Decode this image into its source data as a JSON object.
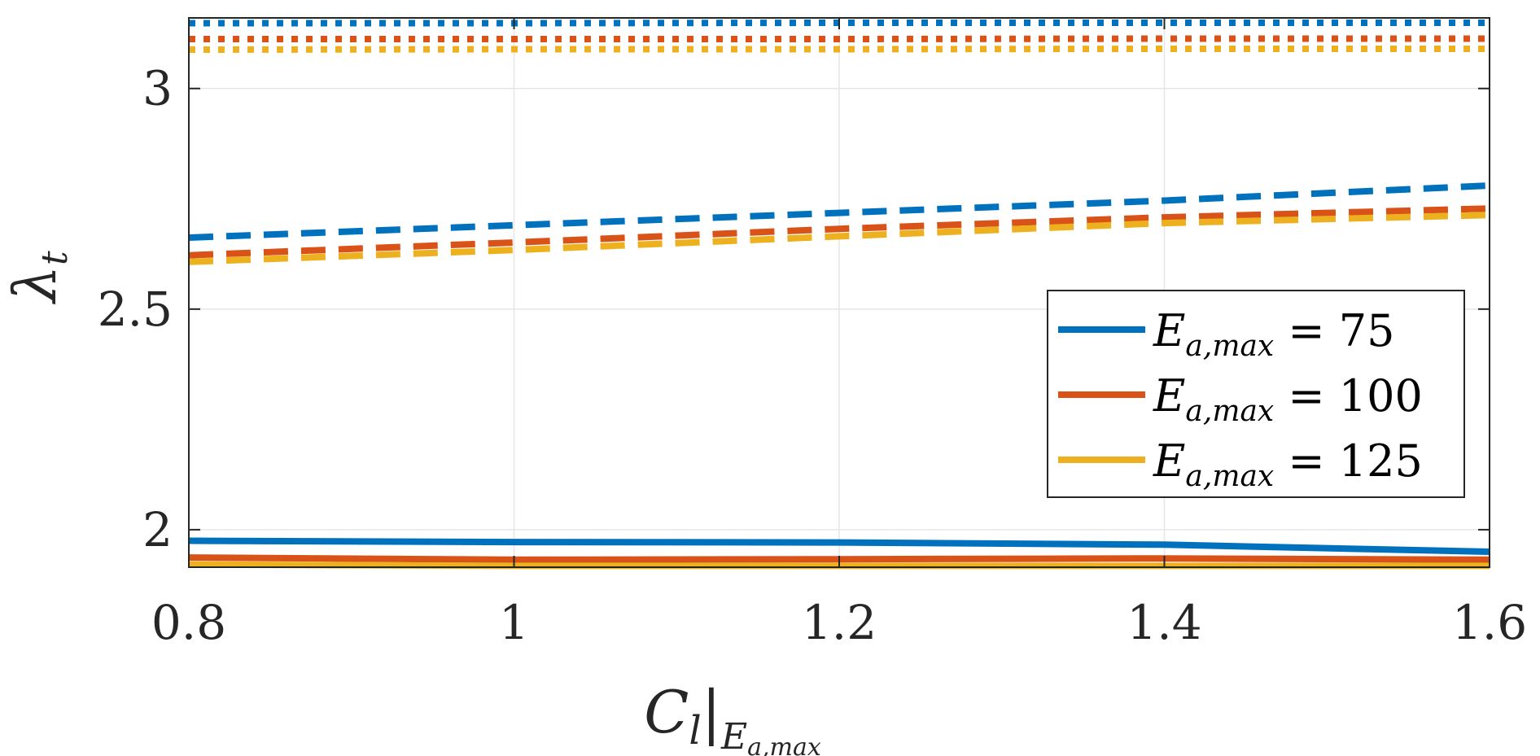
{
  "chart_data": {
    "type": "line",
    "title": "",
    "xlabel": {
      "main": "C",
      "sub1": "l",
      "bar": "|",
      "sub2": "E",
      "sub2sub": "a,max"
    },
    "ylabel": {
      "main": "λ",
      "sub": "t"
    },
    "xlim": [
      0.8,
      1.6
    ],
    "ylim": [
      1.915,
      3.16
    ],
    "xticks": [
      0.8,
      1.0,
      1.2,
      1.4,
      1.6
    ],
    "xtick_labels": [
      "0.8",
      "1",
      "1.2",
      "1.4",
      "1.6"
    ],
    "yticks": [
      2.0,
      2.5,
      3.0
    ],
    "ytick_labels": [
      "2",
      "2.5",
      "3"
    ],
    "grid": true,
    "legend_position": "center-right",
    "legend": [
      {
        "label_main": "E",
        "label_sub": "a,max",
        "label_value": " = 75",
        "color": "#0072BD"
      },
      {
        "label_main": "E",
        "label_sub": "a,max",
        "label_value": " = 100",
        "color": "#D95319"
      },
      {
        "label_main": "E",
        "label_sub": "a,max",
        "label_value": " = 125",
        "color": "#EDB120"
      }
    ],
    "series": [
      {
        "style": "solid",
        "color": "#0072BD",
        "x": [
          0.8,
          1.0,
          1.2,
          1.4,
          1.6
        ],
        "y": [
          1.975,
          1.972,
          1.971,
          1.966,
          1.95
        ]
      },
      {
        "style": "solid",
        "color": "#D95319",
        "x": [
          0.8,
          1.0,
          1.2,
          1.4,
          1.6
        ],
        "y": [
          1.937,
          1.932,
          1.933,
          1.935,
          1.932
        ]
      },
      {
        "style": "solid",
        "color": "#EDB120",
        "x": [
          0.8,
          1.0,
          1.2,
          1.4,
          1.6
        ],
        "y": [
          1.921,
          1.918,
          1.918,
          1.918,
          1.918
        ]
      },
      {
        "style": "dashed",
        "color": "#0072BD",
        "x": [
          0.8,
          1.0,
          1.2,
          1.4,
          1.6
        ],
        "y": [
          2.662,
          2.69,
          2.718,
          2.746,
          2.78
        ]
      },
      {
        "style": "dashed",
        "color": "#D95319",
        "x": [
          0.8,
          1.0,
          1.2,
          1.4,
          1.6
        ],
        "y": [
          2.622,
          2.651,
          2.682,
          2.708,
          2.728
        ]
      },
      {
        "style": "dashed",
        "color": "#EDB120",
        "x": [
          0.8,
          1.0,
          1.2,
          1.4,
          1.6
        ],
        "y": [
          2.607,
          2.634,
          2.665,
          2.695,
          2.713
        ]
      },
      {
        "style": "dotted",
        "color": "#0072BD",
        "x": [
          0.8,
          1.0,
          1.2,
          1.4,
          1.6
        ],
        "y": [
          3.148,
          3.148,
          3.149,
          3.149,
          3.149
        ]
      },
      {
        "style": "dotted",
        "color": "#D95319",
        "x": [
          0.8,
          1.0,
          1.2,
          1.4,
          1.6
        ],
        "y": [
          3.112,
          3.112,
          3.112,
          3.113,
          3.113
        ]
      },
      {
        "style": "dotted",
        "color": "#EDB120",
        "x": [
          0.8,
          1.0,
          1.2,
          1.4,
          1.6
        ],
        "y": [
          3.088,
          3.089,
          3.089,
          3.09,
          3.09
        ]
      }
    ]
  }
}
